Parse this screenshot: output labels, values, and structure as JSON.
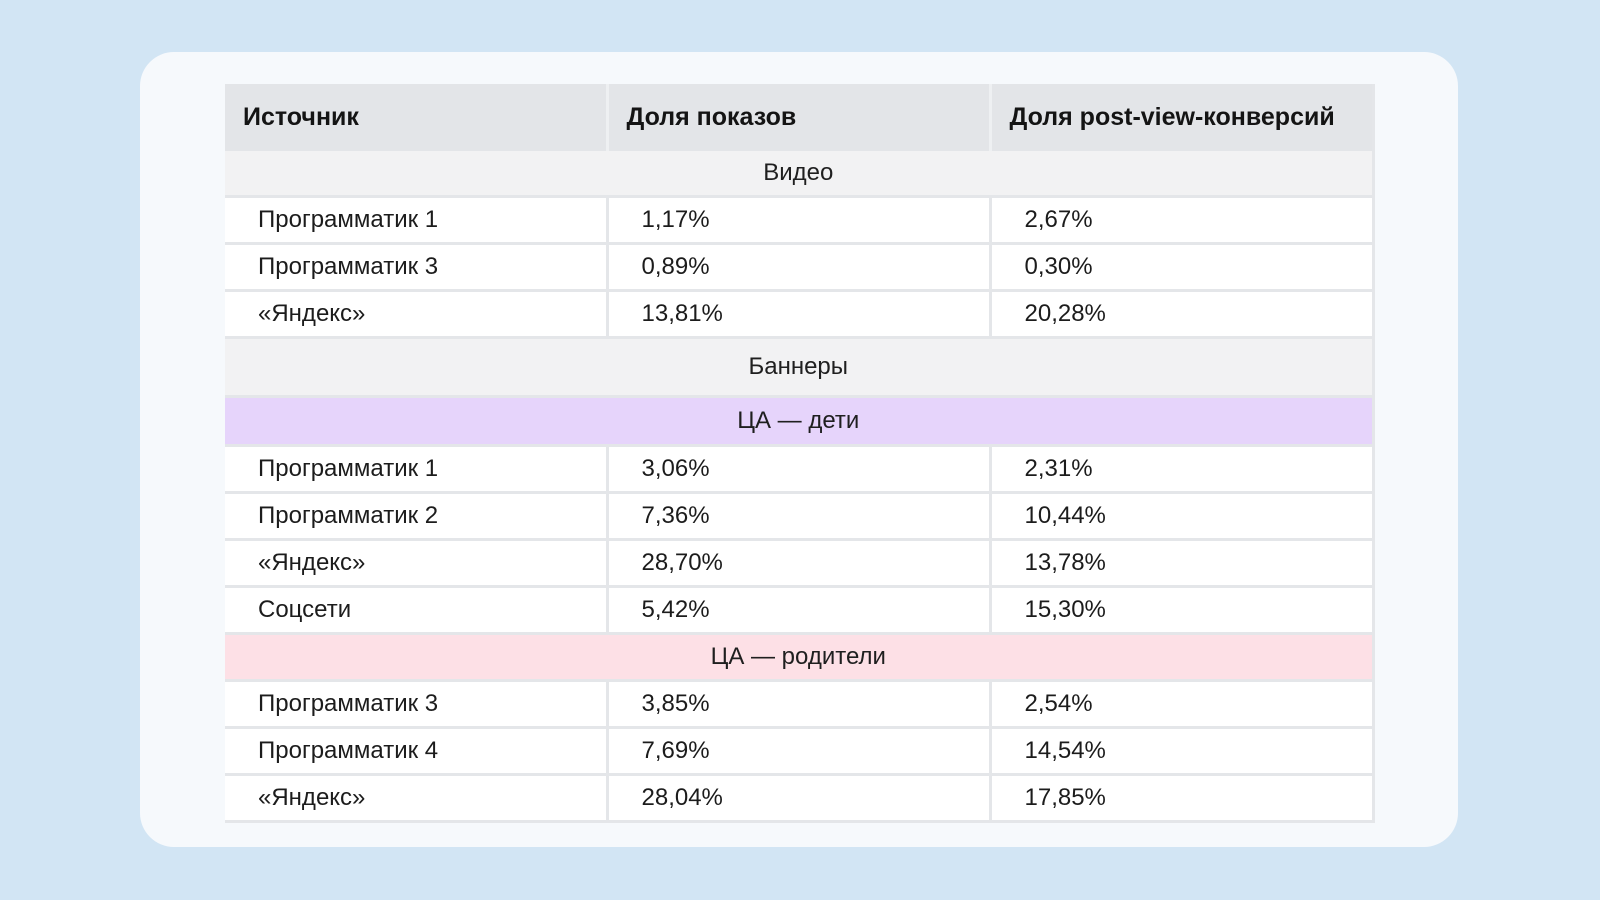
{
  "table": {
    "headers": [
      "Источник",
      "Доля показов",
      "Доля post-view-конверсий"
    ],
    "sections": {
      "video": "Видео",
      "banners": "Баннеры",
      "kids": "ЦА — дети",
      "parents": "ЦА — родители"
    },
    "video_rows": [
      [
        "Программатик 1",
        "1,17%",
        "2,67%"
      ],
      [
        "Программатик 3",
        "0,89%",
        "0,30%"
      ],
      [
        "«Яндекс»",
        "13,81%",
        "20,28%"
      ]
    ],
    "kids_rows": [
      [
        "Программатик 1",
        "3,06%",
        "2,31%"
      ],
      [
        "Программатик 2",
        "7,36%",
        "10,44%"
      ],
      [
        "«Яндекс»",
        "28,70%",
        "13,78%"
      ],
      [
        "Соцсети",
        "5,42%",
        "15,30%"
      ]
    ],
    "parents_rows": [
      [
        "Программатик 3",
        "3,85%",
        "2,54%"
      ],
      [
        "Программатик 4",
        "7,69%",
        "14,54%"
      ],
      [
        "«Яндекс»",
        "28,04%",
        "17,85%"
      ]
    ],
    "colors": {
      "page_bg": "#d2e5f4",
      "card_bg": "#f6f9fc",
      "header_bg": "#e3e5e8",
      "section_gray": "#f2f2f3",
      "section_purple": "#e6d4fb",
      "section_pink": "#fde0e6"
    }
  }
}
